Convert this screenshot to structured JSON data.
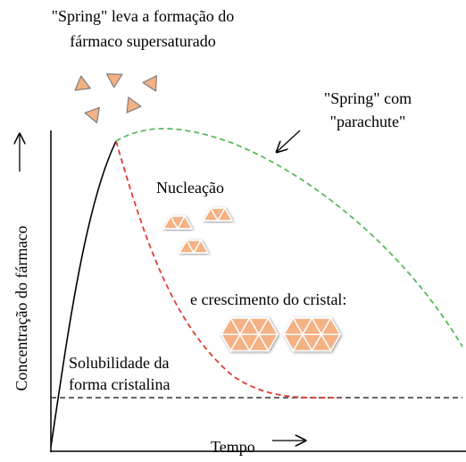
{
  "header": {
    "lines": [
      "\"Spring\" leva a formação do",
      "fármaco supersaturado"
    ]
  },
  "annotations": {
    "spring_parachute": [
      "\"Spring\" com",
      "\"parachute\""
    ],
    "nucleation": "Nucleação",
    "growth": "e crescimento do cristal:",
    "solubility": [
      "Solubilidade da",
      "forma cristalina"
    ]
  },
  "axes": {
    "y_label": "Concentração do fármaco",
    "x_label": "Tempo"
  }
}
